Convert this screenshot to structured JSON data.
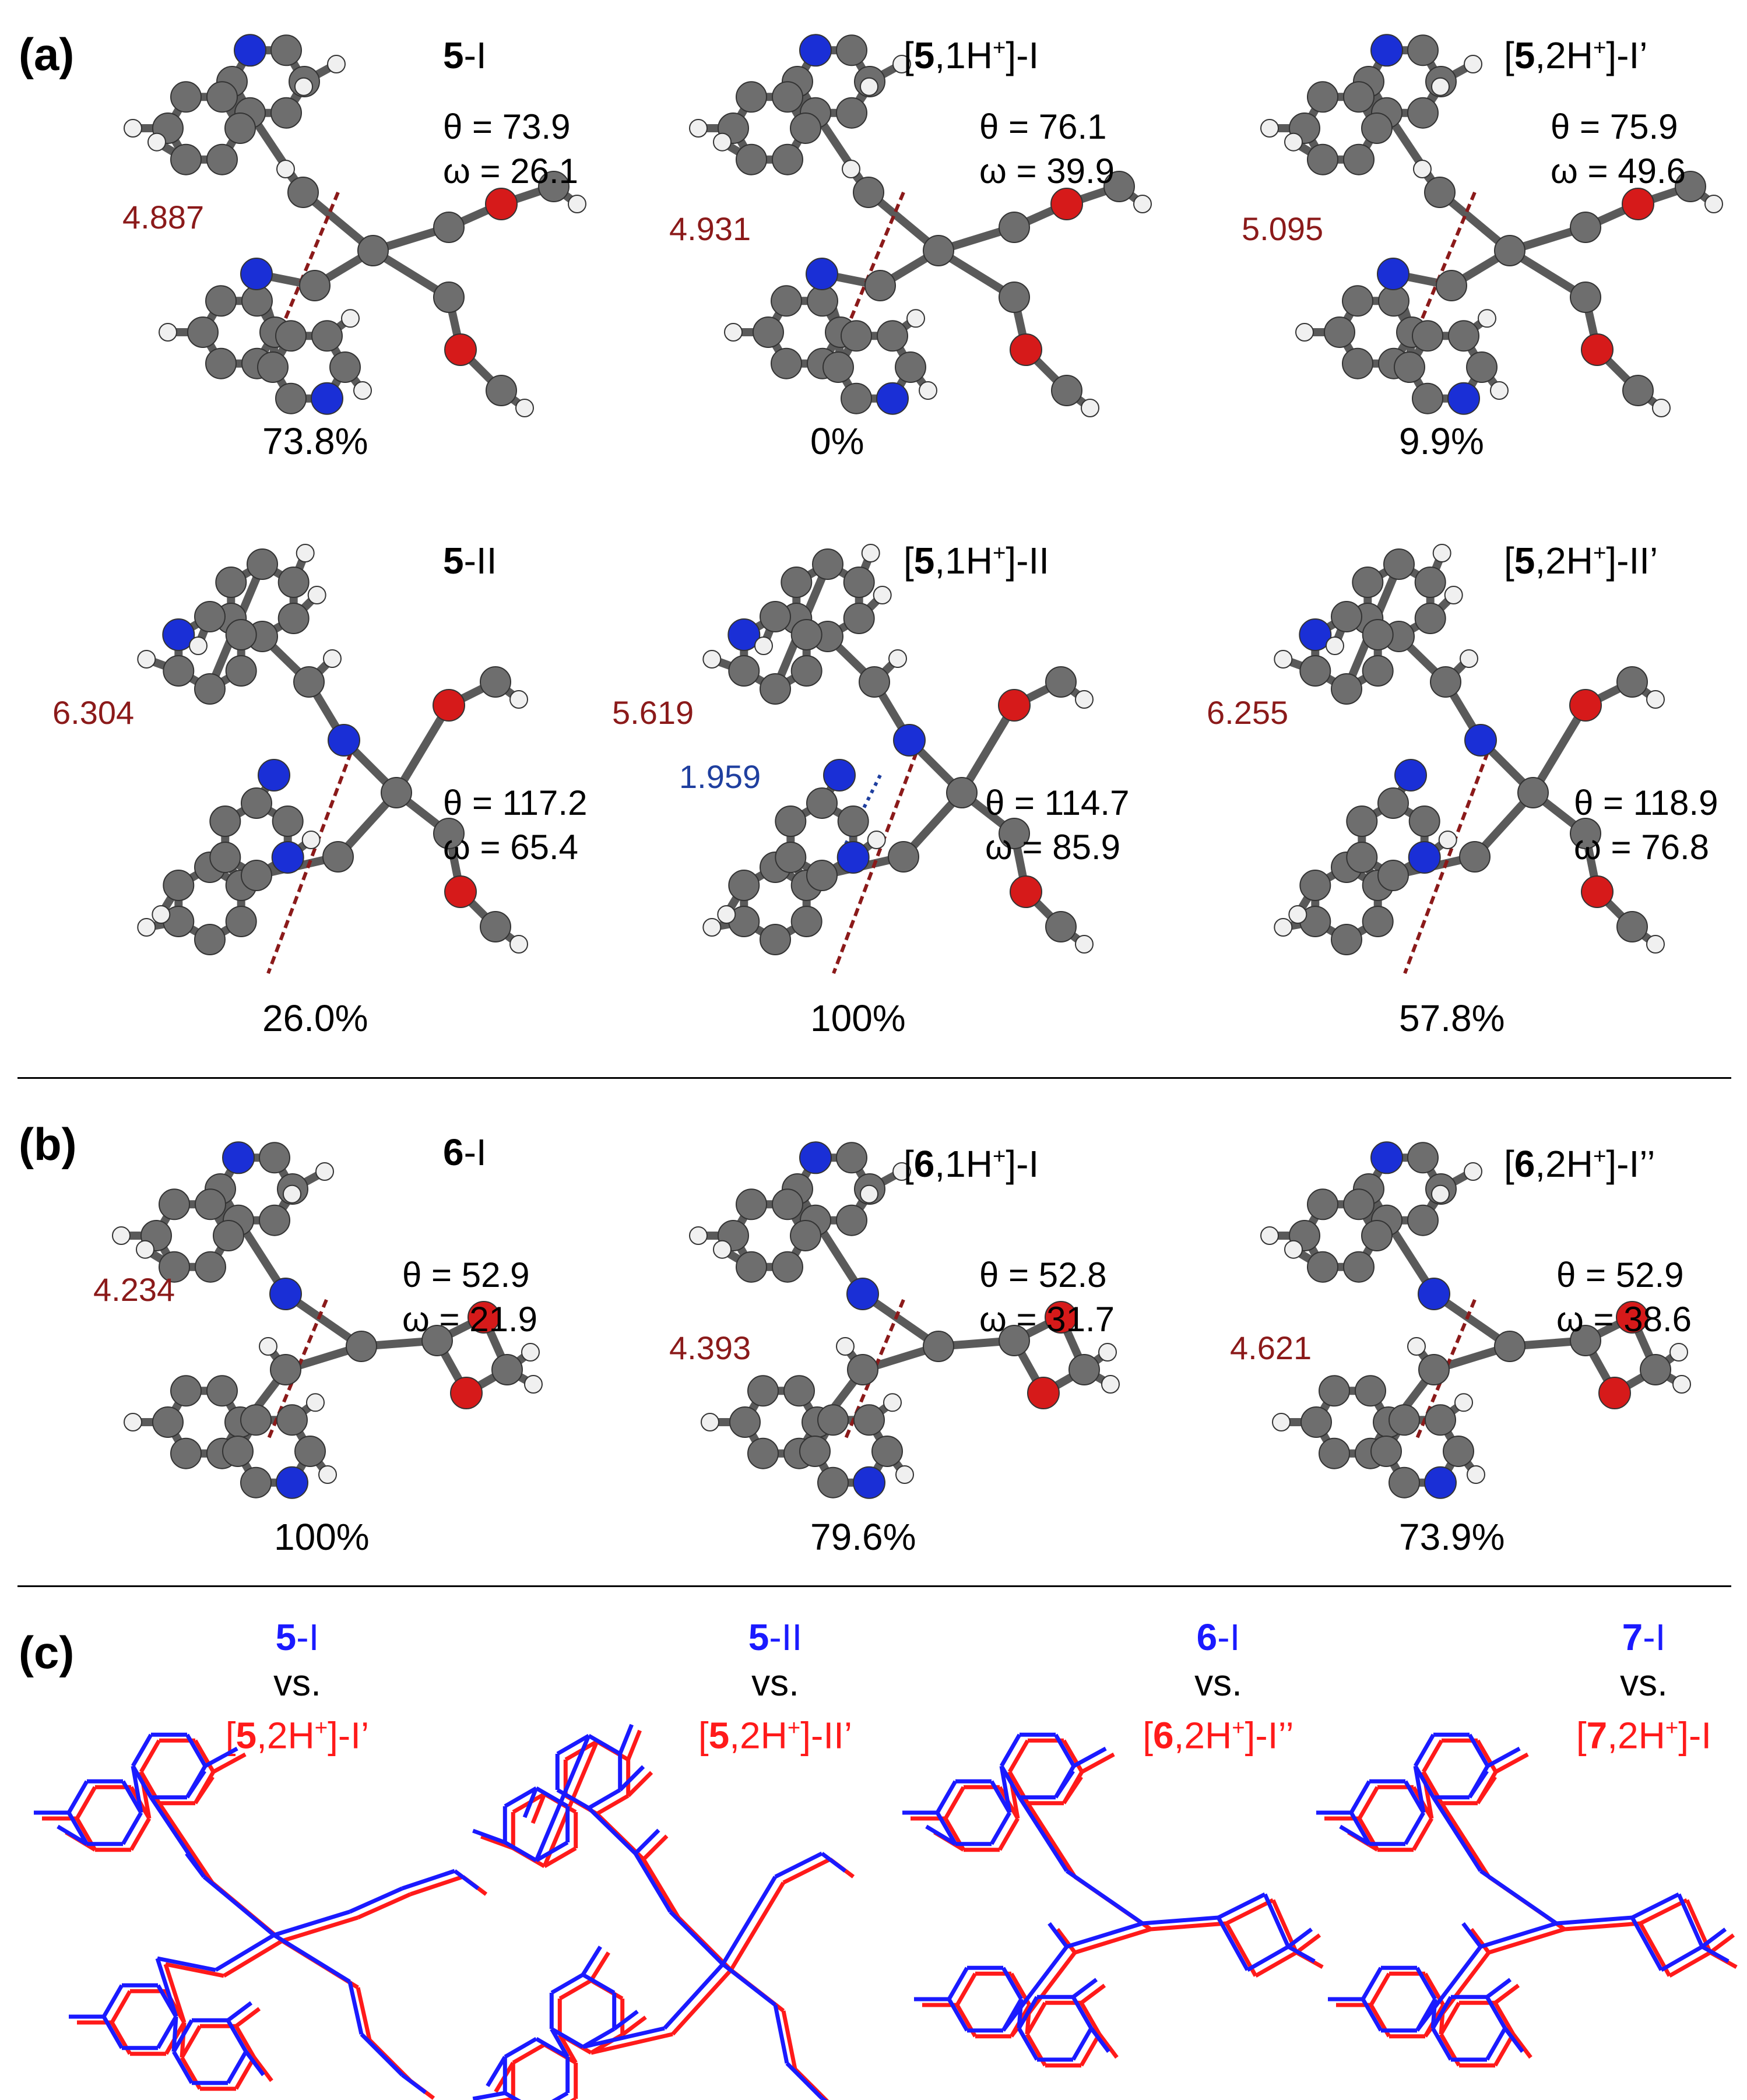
{
  "panels": {
    "a": "(a)",
    "b": "(b)",
    "c": "(c)"
  },
  "structures": [
    {
      "id": "s5I",
      "bold": "5",
      "suffix": "-I",
      "theta": "θ = 73.9",
      "omega": "ω = 26.1",
      "dist": "4.887",
      "pct": "73.8%"
    },
    {
      "id": "s51HI",
      "pre": "[",
      "bold": "5",
      "mid": ",1H",
      "sup": "+",
      "suffix": "]-I",
      "theta": "θ = 76.1",
      "omega": "ω = 39.9",
      "dist": "4.931",
      "pct": "0%"
    },
    {
      "id": "s52HI",
      "pre": "[",
      "bold": "5",
      "mid": ",2H",
      "sup": "+",
      "suffix": "]-I’",
      "theta": "θ = 75.9",
      "omega": "ω = 49.6",
      "dist": "5.095",
      "pct": "9.9%"
    },
    {
      "id": "s5II",
      "bold": "5",
      "suffix": "-II",
      "theta": "θ = 117.2",
      "omega": "ω = 65.4",
      "dist": "6.304",
      "pct": "26.0%"
    },
    {
      "id": "s51HII",
      "pre": "[",
      "bold": "5",
      "mid": ",1H",
      "sup": "+",
      "suffix": "]-II",
      "theta": "θ = 114.7",
      "omega": "ω = 85.9",
      "dist": "5.619",
      "dist2": "1.959",
      "pct": "100%"
    },
    {
      "id": "s52HII",
      "pre": "[",
      "bold": "5",
      "mid": ",2H",
      "sup": "+",
      "suffix": "]-II’",
      "theta": "θ = 118.9",
      "omega": "ω = 76.8",
      "dist": "6.255",
      "pct": "57.8%"
    },
    {
      "id": "s6I",
      "bold": "6",
      "suffix": "-I",
      "theta": "θ = 52.9",
      "omega": "ω = 21.9",
      "dist": "4.234",
      "pct": "100%"
    },
    {
      "id": "s61HI",
      "pre": "[",
      "bold": "6",
      "mid": ",1H",
      "sup": "+",
      "suffix": "]-I",
      "theta": "θ = 52.8",
      "omega": "ω = 31.7",
      "dist": "4.393",
      "pct": "79.6%"
    },
    {
      "id": "s62HI",
      "pre": "[",
      "bold": "6",
      "mid": ",2H",
      "sup": "+",
      "suffix": "]-I’’",
      "theta": "θ = 52.9",
      "omega": "ω = 38.6",
      "dist": "4.621",
      "pct": "73.9%"
    }
  ],
  "comparisons": [
    {
      "blue_bold": "5",
      "blue_suffix": "-I",
      "vs": "vs.",
      "red_pre": "[",
      "red_bold": "5",
      "red_mid": ",2H",
      "red_sup": "+",
      "red_suffix": "]-I’"
    },
    {
      "blue_bold": "5",
      "blue_suffix": "-II",
      "vs": "vs.",
      "red_pre": "[",
      "red_bold": "5",
      "red_mid": ",2H",
      "red_sup": "+",
      "red_suffix": "]-II’"
    },
    {
      "blue_bold": "6",
      "blue_suffix": "-I",
      "vs": "vs.",
      "red_pre": "[",
      "red_bold": "6",
      "red_mid": ",2H",
      "red_sup": "+",
      "red_suffix": "]-I’’"
    },
    {
      "blue_bold": "7",
      "blue_suffix": "-I",
      "vs": "vs.",
      "red_pre": "[",
      "red_bold": "7",
      "red_mid": ",2H",
      "red_sup": "+",
      "red_suffix": "]-I"
    }
  ],
  "colors": {
    "carbon": "#6e6e6e",
    "hydrogen": "#f0f0f0",
    "nitrogen": "#1a2fd6",
    "oxygen": "#d61a1a",
    "bond": "#5a5a5a",
    "distance": "#8b1a1a",
    "hbond": "#1f3f9f",
    "overlay_blue": "#1a1aff",
    "overlay_red": "#ff1a1a"
  }
}
